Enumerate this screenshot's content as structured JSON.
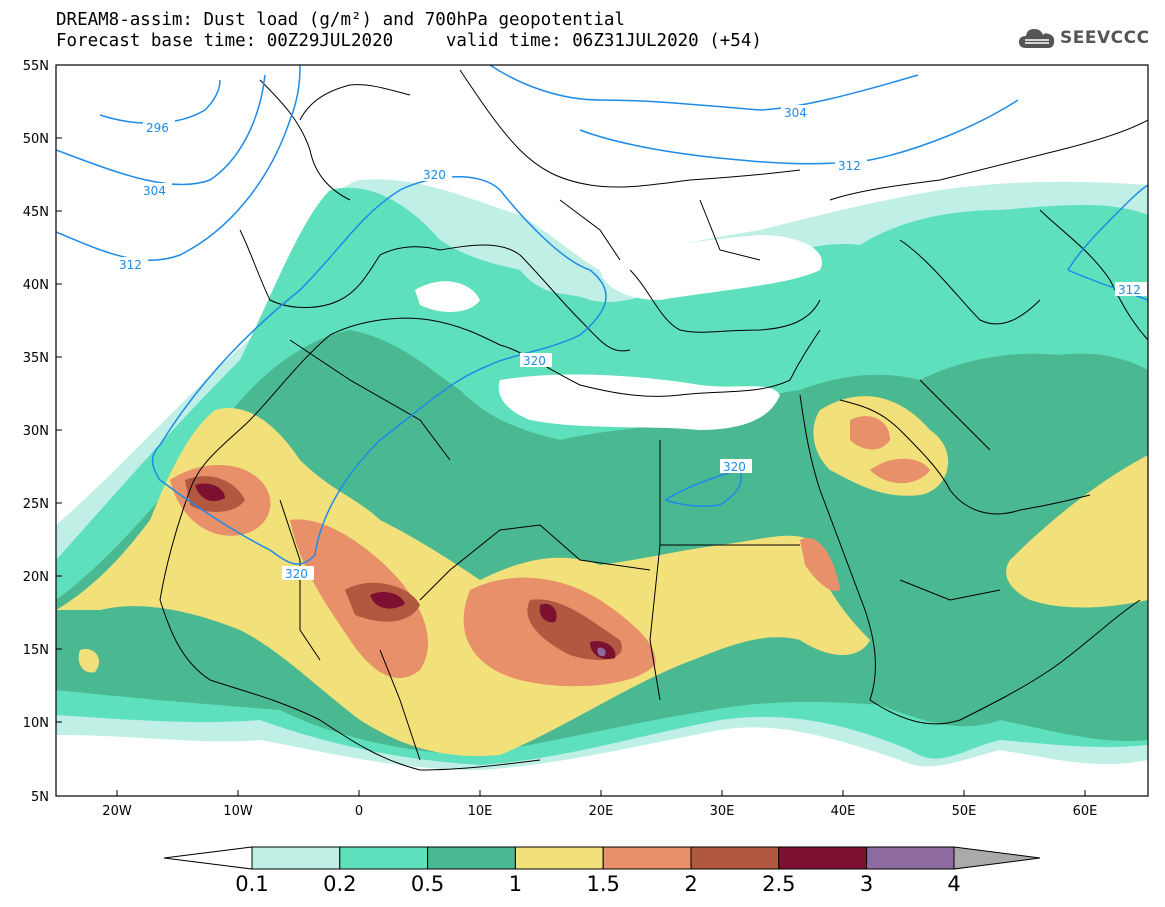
{
  "header": {
    "title_line1": "DREAM8-assim: Dust load (g/m²) and 700hPa geopotential",
    "title_line2": "Forecast base time: 00Z29JUL2020     valid time: 06Z31JUL2020 (+54)"
  },
  "logo": {
    "text": "SEEVCCC",
    "icon": "cloud-logo-icon"
  },
  "map": {
    "lat_labels": [
      "55N",
      "50N",
      "45N",
      "40N",
      "35N",
      "30N",
      "25N",
      "20N",
      "15N",
      "10N",
      "5N"
    ],
    "lon_labels": [
      "20W",
      "10W",
      "0",
      "10E",
      "20E",
      "30E",
      "40E",
      "50E",
      "60E"
    ],
    "contour_labels": [
      "296",
      "304",
      "312",
      "320",
      "320",
      "320",
      "320",
      "304",
      "312",
      "312"
    ],
    "contour_color": "#1e8be8"
  },
  "colorbar": {
    "labels": [
      "0.1",
      "0.2",
      "0.5",
      "1",
      "1.5",
      "2",
      "2.5",
      "3",
      "4"
    ],
    "colors": [
      "#ffffff",
      "#bfefe5",
      "#5ee0bc",
      "#4ab891",
      "#f2e07a",
      "#e8906a",
      "#b35840",
      "#7d1030",
      "#8d6aa0",
      "#aaaaaa"
    ]
  }
}
